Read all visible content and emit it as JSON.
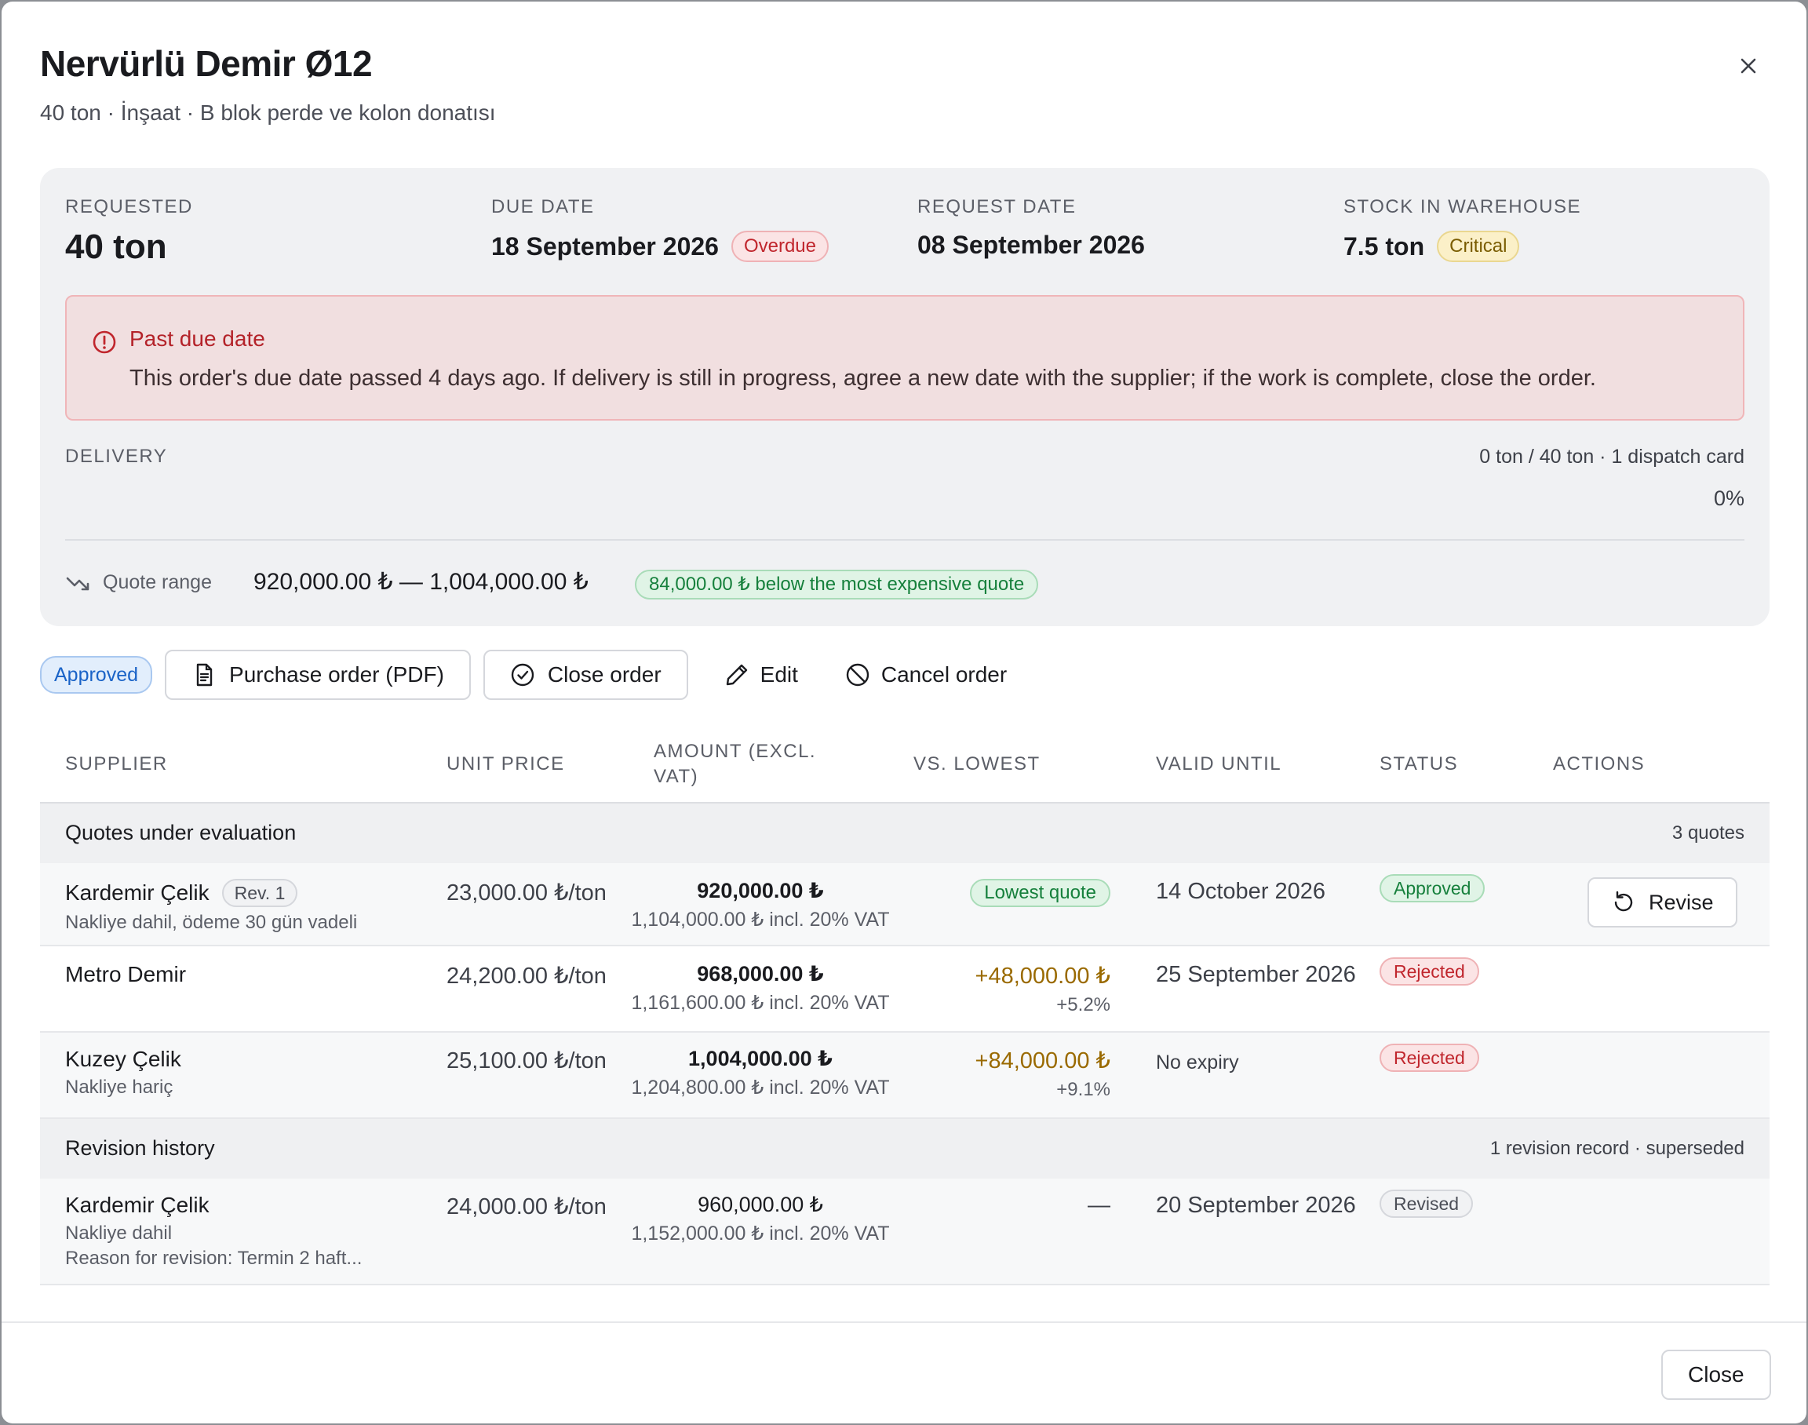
{
  "dialog": {
    "title": "Nervürlü Demir Ø12",
    "subtitle": "40 ton · İnşaat · B blok perde ve kolon donatısı"
  },
  "summary": {
    "requested": {
      "label": "REQUESTED",
      "value": "40 ton"
    },
    "due_date": {
      "label": "DUE DATE",
      "value": "18 September 2026",
      "badge": "Overdue"
    },
    "request_date": {
      "label": "REQUEST DATE",
      "value": "08 September 2026"
    },
    "stock": {
      "label": "STOCK IN WAREHOUSE",
      "value": "7.5 ton",
      "badge": "Critical"
    },
    "alert": {
      "title": "Past due date",
      "text": "This order's due date passed 4 days ago. If delivery is still in progress, agree a new date with the supplier; if the work is complete, close the order."
    },
    "delivery": {
      "label": "DELIVERY",
      "meta": "0 ton / 40 ton · 1 dispatch card",
      "percent_text": "0%",
      "progress": 0
    },
    "quote_range": {
      "label": "Quote range",
      "value": "920,000.00 ₺ — 1,004,000.00 ₺",
      "badge": "84,000.00 ₺ below the most expensive quote"
    }
  },
  "actions": {
    "status": "Approved",
    "purchase_order": "Purchase order (PDF)",
    "close_order": "Close order",
    "edit": "Edit",
    "cancel_order": "Cancel order"
  },
  "table": {
    "headers": {
      "supplier": "SUPPLIER",
      "unit_price": "UNIT PRICE",
      "amount_1": "AMOUNT (EXCL.",
      "amount_2": "VAT)",
      "vs_lowest": "VS. LOWEST",
      "valid_until": "VALID UNTIL",
      "status": "STATUS",
      "actions": "ACTIONS"
    },
    "groups": {
      "quotes": {
        "title": "Quotes under evaluation",
        "meta": "3 quotes"
      },
      "history": {
        "title": "Revision history",
        "meta": "1 revision record · superseded"
      }
    },
    "rows": [
      {
        "supplier": "Kardemir Çelik",
        "rev": "Rev. 1",
        "note": "Nakliye dahil, ödeme 30 gün vadeli",
        "unit_price": "23,000.00 ₺/ton",
        "amount": "920,000.00 ₺",
        "amount_vat": "1,104,000.00 ₺ incl. 20% VAT",
        "vs_badge": "Lowest quote",
        "valid_until": "14 October 2026",
        "status": "Approved",
        "action": "Revise"
      },
      {
        "supplier": "Metro Demir",
        "unit_price": "24,200.00 ₺/ton",
        "amount": "968,000.00 ₺",
        "amount_vat": "1,161,600.00 ₺ incl. 20% VAT",
        "vs_main": "+48,000.00 ₺",
        "vs_sub": "+5.2%",
        "valid_until": "25 September 2026",
        "status": "Rejected"
      },
      {
        "supplier": "Kuzey Çelik",
        "note": "Nakliye hariç",
        "unit_price": "25,100.00 ₺/ton",
        "amount": "1,004,000.00 ₺",
        "amount_vat": "1,204,800.00 ₺ incl. 20% VAT",
        "vs_main": "+84,000.00 ₺",
        "vs_sub": "+9.1%",
        "valid_until": "No expiry",
        "status": "Rejected"
      }
    ],
    "history_row": {
      "supplier": "Kardemir Çelik",
      "note": "Nakliye dahil",
      "reason": "Reason for revision: Termin 2 haft...",
      "unit_price": "24,000.00 ₺/ton",
      "amount": "960,000.00 ₺",
      "amount_vat": "1,152,000.00 ₺ incl. 20% VAT",
      "vs_main": "—",
      "valid_until": "20 September 2026",
      "status": "Revised"
    }
  },
  "footer": {
    "close": "Close"
  },
  "icons": {
    "close": "close-icon",
    "alert": "alert-circle-icon",
    "trend": "trending-down-icon",
    "document": "file-text-icon",
    "check": "check-circle-icon",
    "edit": "pencil-icon",
    "cancel": "ban-icon",
    "revise": "rotate-ccw-icon"
  },
  "colors": {
    "danger": "#c0262d",
    "success": "#16803c",
    "warning": "#9a6a00",
    "info": "#1a63c7"
  }
}
